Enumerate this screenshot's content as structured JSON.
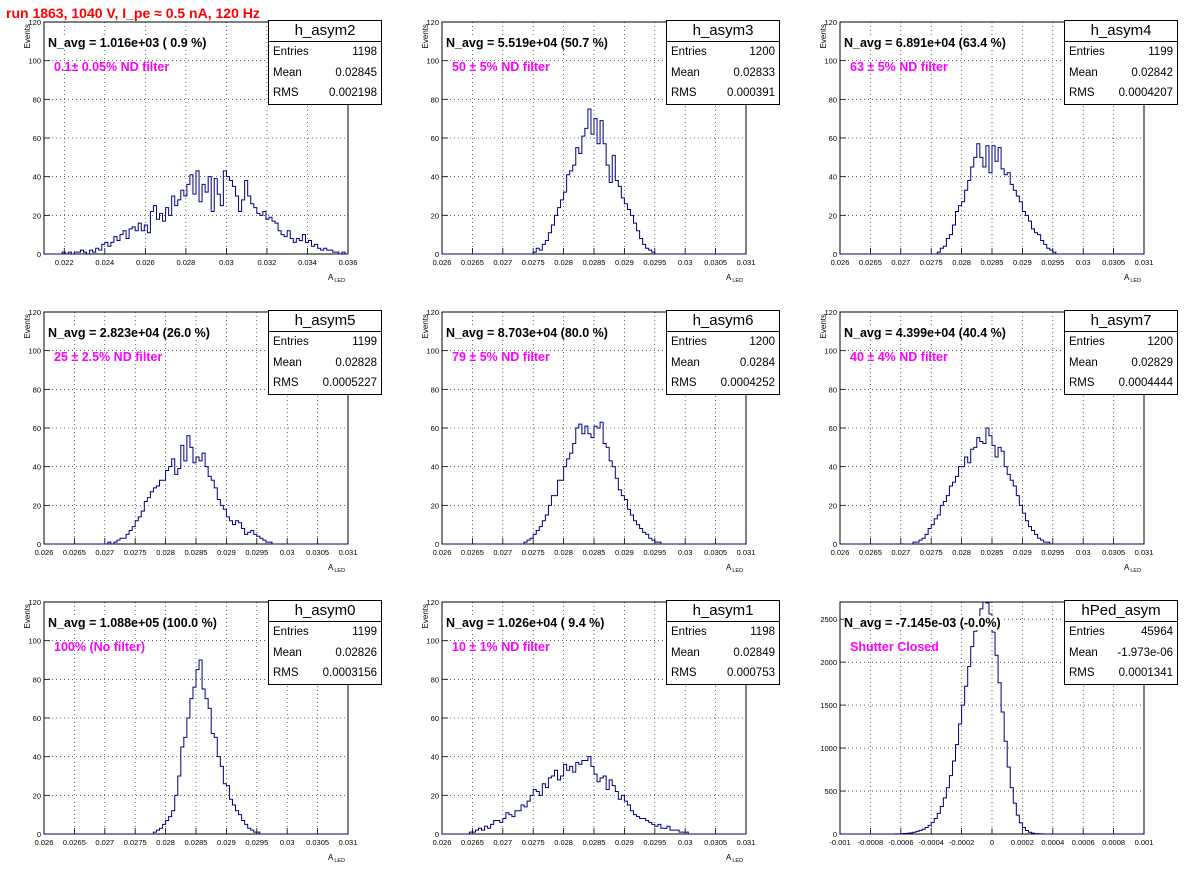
{
  "title": "run 1863,  1040 V, I_pe ≈ 0.5 nA, 120 Hz",
  "color_line": "#000080",
  "color_note": "#ff00ff",
  "color_title": "#ff0000",
  "panels": [
    {
      "name": "h_asym2",
      "navg": "N_avg = 1.016e+03 ( 0.9 %)",
      "note": "0.1± 0.05% ND filter",
      "entries_label": "Entries",
      "entries": "1198",
      "mean_label": "Mean",
      "mean": "0.02845",
      "rms_label": "RMS",
      "rms": "0.002198",
      "ylabel": "Events",
      "xlabel": "A",
      "xlabel_sub": "LED"
    },
    {
      "name": "h_asym3",
      "navg": "N_avg = 5.519e+04 (50.7 %)",
      "note": "50 ± 5% ND filter",
      "entries_label": "Entries",
      "entries": "1200",
      "mean_label": "Mean",
      "mean": "0.02833",
      "rms_label": "RMS",
      "rms": "0.000391",
      "ylabel": "Events",
      "xlabel": "A",
      "xlabel_sub": "LED"
    },
    {
      "name": "h_asym4",
      "navg": "N_avg = 6.891e+04 (63.4 %)",
      "note": "63 ± 5% ND filter",
      "entries_label": "Entries",
      "entries": "1199",
      "mean_label": "Mean",
      "mean": "0.02842",
      "rms_label": "RMS",
      "rms": "0.0004207",
      "ylabel": "Events",
      "xlabel": "A",
      "xlabel_sub": "LED"
    },
    {
      "name": "h_asym5",
      "navg": "N_avg = 2.823e+04 (26.0 %)",
      "note": "25 ± 2.5% ND filter",
      "entries_label": "Entries",
      "entries": "1199",
      "mean_label": "Mean",
      "mean": "0.02828",
      "rms_label": "RMS",
      "rms": "0.0005227",
      "ylabel": "Events",
      "xlabel": "A",
      "xlabel_sub": "LED"
    },
    {
      "name": "h_asym6",
      "navg": "N_avg = 8.703e+04 (80.0 %)",
      "note": "79 ± 5% ND filter",
      "entries_label": "Entries",
      "entries": "1200",
      "mean_label": "Mean",
      "mean": "0.0284",
      "rms_label": "RMS",
      "rms": "0.0004252",
      "ylabel": "Events",
      "xlabel": "A",
      "xlabel_sub": "LED"
    },
    {
      "name": "h_asym7",
      "navg": "N_avg = 4.399e+04 (40.4 %)",
      "note": "40 ± 4% ND filter",
      "entries_label": "Entries",
      "entries": "1200",
      "mean_label": "Mean",
      "mean": "0.02829",
      "rms_label": "RMS",
      "rms": "0.0004444",
      "ylabel": "Events",
      "xlabel": "A",
      "xlabel_sub": "LED"
    },
    {
      "name": "h_asym0",
      "navg": "N_avg = 1.088e+05 (100.0 %)",
      "note": "100% (No filter)",
      "entries_label": "Entries",
      "entries": "1199",
      "mean_label": "Mean",
      "mean": "0.02826",
      "rms_label": "RMS",
      "rms": "0.0003156",
      "ylabel": "Events",
      "xlabel": "A",
      "xlabel_sub": "LED"
    },
    {
      "name": "h_asym1",
      "navg": "N_avg = 1.026e+04 ( 9.4 %)",
      "note": "10 ± 1% ND filter",
      "entries_label": "Entries",
      "entries": "1198",
      "mean_label": "Mean",
      "mean": "0.02849",
      "rms_label": "RMS",
      "rms": "0.000753",
      "ylabel": "Events",
      "xlabel": "A",
      "xlabel_sub": "LED"
    },
    {
      "name": "hPed_asym",
      "navg": "N_avg = -7.145e-03 (-0.0%)",
      "note": "Shutter Closed",
      "entries_label": "Entries",
      "entries": "45964",
      "mean_label": "Mean",
      "mean": "-1.973e-06",
      "rms_label": "RMS",
      "rms": "0.0001341",
      "ylabel": "",
      "xlabel": "",
      "xlabel_sub": ""
    }
  ],
  "chart_data": [
    {
      "type": "histogram",
      "name": "h_asym2",
      "xlim": [
        0.021,
        0.036
      ],
      "ylim": [
        0,
        120
      ],
      "xticks": [
        "0.022",
        "0.024",
        "0.026",
        "0.028",
        "0.03",
        "0.032",
        "0.034",
        "0.036"
      ],
      "yticks": [
        "0",
        "20",
        "40",
        "60",
        "80",
        "100",
        "120"
      ],
      "bin_start": 0.021,
      "bin_width": 0.00015,
      "counts": [
        0,
        0,
        0,
        0,
        0,
        0,
        1,
        0,
        1,
        0,
        1,
        1,
        2,
        1,
        0,
        2,
        1,
        3,
        2,
        5,
        6,
        4,
        6,
        9,
        7,
        10,
        12,
        8,
        13,
        14,
        12,
        16,
        12,
        15,
        11,
        22,
        25,
        18,
        21,
        17,
        24,
        20,
        30,
        25,
        28,
        33,
        30,
        36,
        41,
        31,
        43,
        27,
        36,
        32,
        40,
        22,
        39,
        31,
        25,
        43,
        40,
        38,
        35,
        30,
        22,
        28,
        38,
        30,
        26,
        24,
        21,
        20,
        22,
        18,
        19,
        17,
        16,
        12,
        10,
        9,
        12,
        8,
        6,
        8,
        7,
        10,
        6,
        7,
        4,
        5,
        3,
        2,
        3,
        2,
        2,
        1,
        1,
        0,
        1,
        0
      ]
    },
    {
      "type": "histogram",
      "name": "h_asym3",
      "xlim": [
        0.026,
        0.031
      ],
      "ylim": [
        0,
        120
      ],
      "xticks": [
        "0.026",
        "0.0265",
        "0.027",
        "0.0275",
        "0.028",
        "0.0285",
        "0.029",
        "0.0295",
        "0.03",
        "0.0305",
        "0.031"
      ],
      "yticks": [
        "0",
        "20",
        "40",
        "60",
        "80",
        "100",
        "120"
      ],
      "bin_start": 0.026,
      "bin_width": 5e-05,
      "counts": [
        0,
        0,
        0,
        0,
        0,
        0,
        0,
        0,
        0,
        0,
        0,
        0,
        0,
        0,
        0,
        0,
        0,
        0,
        0,
        0,
        0,
        0,
        0,
        0,
        0,
        0,
        0,
        0,
        0,
        0,
        1,
        3,
        2,
        5,
        7,
        11,
        15,
        20,
        24,
        28,
        32,
        41,
        43,
        46,
        55,
        52,
        61,
        65,
        75,
        62,
        70,
        57,
        69,
        57,
        46,
        37,
        51,
        38,
        35,
        29,
        26,
        23,
        20,
        16,
        12,
        8,
        5,
        3,
        2,
        1,
        0,
        0,
        0,
        0,
        0,
        0,
        0,
        0,
        0,
        0,
        0,
        0,
        0,
        0,
        0,
        0,
        0,
        0,
        0,
        0,
        0,
        0,
        0,
        0,
        0,
        0,
        0,
        0,
        0,
        0
      ]
    },
    {
      "type": "histogram",
      "name": "h_asym4",
      "xlim": [
        0.026,
        0.031
      ],
      "ylim": [
        0,
        120
      ],
      "xticks": [
        "0.026",
        "0.0265",
        "0.027",
        "0.0275",
        "0.028",
        "0.0285",
        "0.029",
        "0.0295",
        "0.03",
        "0.0305",
        "0.031"
      ],
      "yticks": [
        "0",
        "20",
        "40",
        "60",
        "80",
        "100",
        "120"
      ],
      "bin_start": 0.026,
      "bin_width": 5e-05,
      "counts": [
        0,
        0,
        0,
        0,
        0,
        0,
        0,
        0,
        0,
        0,
        0,
        0,
        0,
        0,
        0,
        0,
        0,
        0,
        0,
        0,
        0,
        0,
        0,
        0,
        0,
        0,
        0,
        0,
        0,
        0,
        0,
        0,
        1,
        3,
        4,
        8,
        10,
        15,
        22,
        25,
        27,
        33,
        38,
        45,
        50,
        57,
        50,
        45,
        56,
        42,
        56,
        48,
        55,
        44,
        41,
        42,
        36,
        33,
        30,
        27,
        22,
        20,
        17,
        13,
        11,
        10,
        7,
        5,
        3,
        2,
        1,
        0,
        0,
        0,
        0,
        0,
        0,
        0,
        0,
        0,
        0,
        0,
        0,
        0,
        0,
        0,
        0,
        0,
        0,
        0,
        0,
        0,
        0,
        0,
        0,
        0,
        0,
        0,
        0,
        0
      ]
    },
    {
      "type": "histogram",
      "name": "h_asym5",
      "xlim": [
        0.026,
        0.031
      ],
      "ylim": [
        0,
        120
      ],
      "xticks": [
        "0.026",
        "0.0265",
        "0.027",
        "0.0275",
        "0.028",
        "0.0285",
        "0.029",
        "0.0295",
        "0.03",
        "0.0305",
        "0.031"
      ],
      "yticks": [
        "0",
        "20",
        "40",
        "60",
        "80",
        "100",
        "120"
      ],
      "bin_start": 0.026,
      "bin_width": 5e-05,
      "counts": [
        0,
        0,
        0,
        0,
        0,
        0,
        0,
        0,
        0,
        0,
        0,
        0,
        0,
        0,
        0,
        0,
        0,
        0,
        0,
        0,
        0,
        1,
        0,
        1,
        2,
        3,
        3,
        5,
        7,
        9,
        12,
        14,
        17,
        22,
        24,
        27,
        29,
        30,
        33,
        33,
        38,
        40,
        44,
        36,
        39,
        51,
        43,
        56,
        50,
        42,
        45,
        43,
        47,
        40,
        35,
        33,
        29,
        23,
        20,
        18,
        14,
        12,
        10,
        12,
        11,
        8,
        5,
        6,
        7,
        5,
        4,
        3,
        2,
        1,
        1,
        0,
        0,
        0,
        0,
        0,
        0,
        0,
        0,
        0,
        0,
        0,
        0,
        0,
        0,
        0,
        0,
        0,
        0,
        0,
        0,
        0,
        0,
        0,
        0,
        0
      ]
    },
    {
      "type": "histogram",
      "name": "h_asym6",
      "xlim": [
        0.026,
        0.031
      ],
      "ylim": [
        0,
        120
      ],
      "xticks": [
        "0.026",
        "0.0265",
        "0.027",
        "0.0275",
        "0.028",
        "0.0285",
        "0.029",
        "0.0295",
        "0.03",
        "0.0305",
        "0.031"
      ],
      "yticks": [
        "0",
        "20",
        "40",
        "60",
        "80",
        "100",
        "120"
      ],
      "bin_start": 0.026,
      "bin_width": 5e-05,
      "counts": [
        0,
        0,
        0,
        0,
        0,
        0,
        0,
        0,
        0,
        0,
        0,
        0,
        0,
        0,
        0,
        0,
        0,
        0,
        0,
        0,
        0,
        0,
        0,
        0,
        0,
        0,
        0,
        1,
        2,
        3,
        5,
        7,
        9,
        12,
        15,
        20,
        25,
        25,
        33,
        33,
        40,
        44,
        47,
        52,
        60,
        62,
        57,
        61,
        57,
        55,
        61,
        60,
        63,
        52,
        50,
        43,
        40,
        34,
        28,
        25,
        23,
        18,
        15,
        12,
        10,
        8,
        6,
        5,
        3,
        2,
        1,
        1,
        0,
        0,
        0,
        0,
        0,
        0,
        0,
        0,
        0,
        0,
        0,
        0,
        0,
        0,
        0,
        0,
        0,
        0,
        0,
        0,
        0,
        0,
        0,
        0,
        0,
        0,
        0,
        0
      ]
    },
    {
      "type": "histogram",
      "name": "h_asym7",
      "xlim": [
        0.026,
        0.031
      ],
      "ylim": [
        0,
        120
      ],
      "xticks": [
        "0.026",
        "0.0265",
        "0.027",
        "0.0275",
        "0.028",
        "0.0285",
        "0.029",
        "0.0295",
        "0.03",
        "0.0305",
        "0.031"
      ],
      "yticks": [
        "0",
        "20",
        "40",
        "60",
        "80",
        "100",
        "120"
      ],
      "bin_start": 0.026,
      "bin_width": 5e-05,
      "counts": [
        0,
        0,
        0,
        0,
        0,
        0,
        0,
        0,
        0,
        0,
        0,
        0,
        0,
        0,
        0,
        0,
        0,
        0,
        0,
        0,
        0,
        0,
        0,
        0,
        1,
        1,
        2,
        3,
        5,
        8,
        10,
        13,
        15,
        20,
        22,
        25,
        30,
        32,
        35,
        40,
        40,
        45,
        42,
        49,
        50,
        55,
        53,
        52,
        60,
        56,
        51,
        45,
        50,
        48,
        40,
        36,
        33,
        30,
        25,
        20,
        16,
        12,
        9,
        7,
        5,
        3,
        2,
        1,
        1,
        0,
        0,
        0,
        0,
        0,
        0,
        0,
        0,
        0,
        0,
        0,
        0,
        0,
        0,
        0,
        0,
        0,
        0,
        0,
        0,
        0,
        0,
        0,
        0,
        0,
        0,
        0,
        0,
        0,
        0,
        0
      ]
    },
    {
      "type": "histogram",
      "name": "h_asym0",
      "xlim": [
        0.026,
        0.031
      ],
      "ylim": [
        0,
        120
      ],
      "xticks": [
        "0.026",
        "0.0265",
        "0.027",
        "0.0275",
        "0.028",
        "0.0285",
        "0.029",
        "0.0295",
        "0.03",
        "0.0305",
        "0.031"
      ],
      "yticks": [
        "0",
        "20",
        "40",
        "60",
        "80",
        "100",
        "120"
      ],
      "bin_start": 0.026,
      "bin_width": 5e-05,
      "counts": [
        0,
        0,
        0,
        0,
        0,
        0,
        0,
        0,
        0,
        0,
        0,
        0,
        0,
        0,
        0,
        0,
        0,
        0,
        0,
        0,
        0,
        0,
        0,
        0,
        0,
        0,
        0,
        0,
        0,
        0,
        0,
        0,
        0,
        0,
        0,
        0,
        1,
        2,
        3,
        5,
        7,
        9,
        12,
        20,
        30,
        45,
        50,
        60,
        70,
        76,
        85,
        90,
        75,
        70,
        65,
        52,
        50,
        40,
        35,
        26,
        25,
        18,
        15,
        12,
        10,
        7,
        5,
        3,
        2,
        1,
        1,
        0,
        0,
        0,
        0,
        0,
        0,
        0,
        0,
        0,
        0,
        0,
        0,
        0,
        0,
        0,
        0,
        0,
        0,
        0,
        0,
        0,
        0,
        0,
        0,
        0,
        0,
        0,
        0,
        0
      ]
    },
    {
      "type": "histogram",
      "name": "h_asym1",
      "xlim": [
        0.026,
        0.031
      ],
      "ylim": [
        0,
        120
      ],
      "xticks": [
        "0.026",
        "0.0265",
        "0.027",
        "0.0275",
        "0.028",
        "0.0285",
        "0.029",
        "0.0295",
        "0.03",
        "0.0305",
        "0.031"
      ],
      "yticks": [
        "0",
        "20",
        "40",
        "60",
        "80",
        "100",
        "120"
      ],
      "bin_start": 0.026,
      "bin_width": 5e-05,
      "counts": [
        0,
        0,
        0,
        0,
        0,
        0,
        0,
        0,
        0,
        1,
        1,
        2,
        3,
        2,
        4,
        3,
        5,
        7,
        7,
        6,
        8,
        11,
        10,
        9,
        12,
        12,
        15,
        14,
        17,
        20,
        23,
        22,
        20,
        26,
        24,
        29,
        30,
        33,
        28,
        30,
        36,
        33,
        35,
        32,
        37,
        36,
        38,
        38,
        40,
        35,
        31,
        27,
        29,
        30,
        23,
        28,
        25,
        22,
        18,
        20,
        17,
        15,
        12,
        10,
        9,
        8,
        8,
        7,
        6,
        5,
        4,
        5,
        3,
        3,
        4,
        2,
        2,
        2,
        1,
        1,
        1,
        0,
        0,
        0,
        0,
        0,
        0,
        0,
        0,
        0,
        0,
        0,
        0,
        0,
        0,
        0,
        0,
        0,
        0,
        0
      ]
    },
    {
      "type": "histogram",
      "name": "hPed_asym",
      "xlim": [
        -0.001,
        0.001
      ],
      "ylim": [
        0,
        2700
      ],
      "xticks": [
        "-0.001",
        "-0.0008",
        "-0.0006",
        "-0.0004",
        "-0.0002",
        "0",
        "0.0002",
        "0.0004",
        "0.0006",
        "0.0008",
        "0.001"
      ],
      "yticks": [
        "0",
        "500",
        "1000",
        "1500",
        "2000",
        "2500"
      ],
      "bin_start": -0.001,
      "bin_width": 2e-05,
      "counts": [
        0,
        0,
        0,
        0,
        0,
        0,
        0,
        0,
        0,
        0,
        0,
        0,
        0,
        0,
        0,
        0,
        0,
        0,
        1,
        2,
        4,
        6,
        9,
        13,
        20,
        30,
        42,
        55,
        75,
        100,
        135,
        180,
        240,
        320,
        420,
        540,
        680,
        850,
        1040,
        1280,
        1500,
        1720,
        1950,
        2180,
        2360,
        2500,
        2620,
        2700,
        2690,
        2560,
        2350,
        2080,
        1760,
        1420,
        1080,
        780,
        540,
        360,
        220,
        130,
        75,
        40,
        20,
        10,
        5,
        3,
        1,
        0,
        0,
        0,
        0,
        0,
        0,
        0,
        0,
        0,
        0,
        0,
        0,
        0,
        0,
        0,
        0,
        0,
        0,
        0,
        0,
        0,
        0,
        0,
        0,
        0,
        0,
        0,
        0,
        0,
        0,
        0,
        0,
        0
      ]
    }
  ]
}
